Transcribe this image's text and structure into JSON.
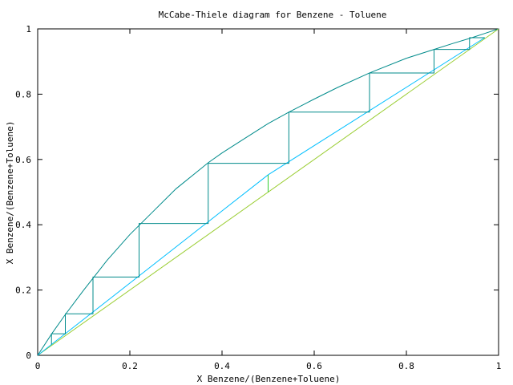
{
  "chart_data": {
    "type": "line",
    "title": "McCabe-Thiele diagram for Benzene - Toluene",
    "xlabel": "X Benzene/(Benzene+Toluene)",
    "ylabel": "X Benzene/(Benzene+Toluene)",
    "xlim": [
      0,
      1
    ],
    "ylim": [
      0,
      1
    ],
    "xticks": [
      "0",
      "0.2",
      "0.4",
      "0.6",
      "0.8",
      "1"
    ],
    "yticks": [
      "0",
      "0.2",
      "0.4",
      "0.6",
      "0.8",
      "1"
    ],
    "grid": false,
    "legend": "none",
    "series": [
      {
        "role": "equilibrium-curve",
        "color": "#008b8b",
        "x": [
          0,
          0.03,
          0.06,
          0.1,
          0.15,
          0.2,
          0.25,
          0.3,
          0.37,
          0.4,
          0.45,
          0.5,
          0.545,
          0.6,
          0.65,
          0.72,
          0.8,
          0.86,
          0.9,
          0.94,
          0.97,
          1
        ],
        "y": [
          0,
          0.065,
          0.125,
          0.2,
          0.29,
          0.37,
          0.44,
          0.51,
          0.59,
          0.62,
          0.665,
          0.71,
          0.745,
          0.785,
          0.82,
          0.865,
          0.91,
          0.937,
          0.955,
          0.972,
          0.986,
          1
        ]
      },
      {
        "role": "diagonal-y-equals-x",
        "color": "#9acd32",
        "x": [
          0,
          1
        ],
        "y": [
          0,
          1
        ]
      },
      {
        "role": "stripping-operating-line",
        "color": "#00bfff",
        "x": [
          0,
          0.5
        ],
        "y": [
          0,
          0.553
        ]
      },
      {
        "role": "rectifying-operating-line",
        "color": "#00bfff",
        "x": [
          0.5,
          0.97
        ],
        "y": [
          0.553,
          0.973
        ]
      },
      {
        "role": "q-line",
        "color": "#32cd32",
        "x": [
          0.5,
          0.5
        ],
        "y": [
          0.5,
          0.553
        ]
      },
      {
        "role": "stage-steps",
        "color": "#008b8b",
        "x": [
          0.97,
          0.937,
          0.937,
          0.86,
          0.86,
          0.72,
          0.72,
          0.545,
          0.545,
          0.37,
          0.37,
          0.22,
          0.22,
          0.12,
          0.12,
          0.06,
          0.06,
          0.03,
          0.03
        ],
        "y": [
          0.973,
          0.973,
          0.937,
          0.937,
          0.865,
          0.865,
          0.745,
          0.745,
          0.588,
          0.588,
          0.404,
          0.404,
          0.24,
          0.24,
          0.127,
          0.127,
          0.066,
          0.066,
          0.033
        ]
      }
    ]
  }
}
